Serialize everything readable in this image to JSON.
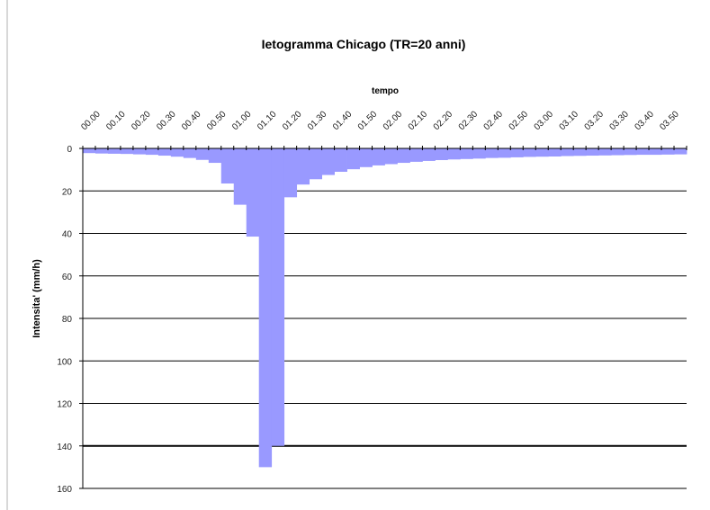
{
  "chart_data": {
    "type": "bar",
    "title": "Ietogramma Chicago (TR=20 anni)",
    "xlabel": "tempo",
    "ylabel": "Intensita' (mm/h)",
    "y_axis_reversed": true,
    "x_axis_position": "top",
    "ylim": [
      0,
      160
    ],
    "yticks": [
      0,
      20,
      40,
      60,
      80,
      100,
      120,
      140,
      160
    ],
    "xtick_labels": [
      "00.00",
      "00.10",
      "00.20",
      "00.30",
      "00.40",
      "00.50",
      "01.00",
      "01.10",
      "01.20",
      "01.30",
      "01.40",
      "01.50",
      "02.00",
      "02.10",
      "02.20",
      "02.30",
      "02.40",
      "02.50",
      "03.00",
      "03.10",
      "03.20",
      "03.30",
      "03.40",
      "03.50"
    ],
    "gridlines": "horizontal",
    "bar_color": "#9999ff",
    "time_step_minutes": 5,
    "values": [
      2.2,
      2.4,
      2.5,
      2.6,
      2.8,
      3.0,
      3.4,
      3.9,
      4.5,
      5.4,
      6.8,
      16.5,
      26.5,
      41.5,
      150,
      140,
      23,
      17,
      14.5,
      12.5,
      11,
      9.8,
      8.8,
      8.0,
      7.4,
      6.8,
      6.3,
      5.9,
      5.5,
      5.2,
      5.0,
      4.8,
      4.5,
      4.4,
      4.2,
      4.0,
      3.9,
      3.8,
      3.6,
      3.5,
      3.4,
      3.3,
      3.2,
      3.1,
      3.0,
      3.0,
      2.9,
      2.8
    ]
  }
}
